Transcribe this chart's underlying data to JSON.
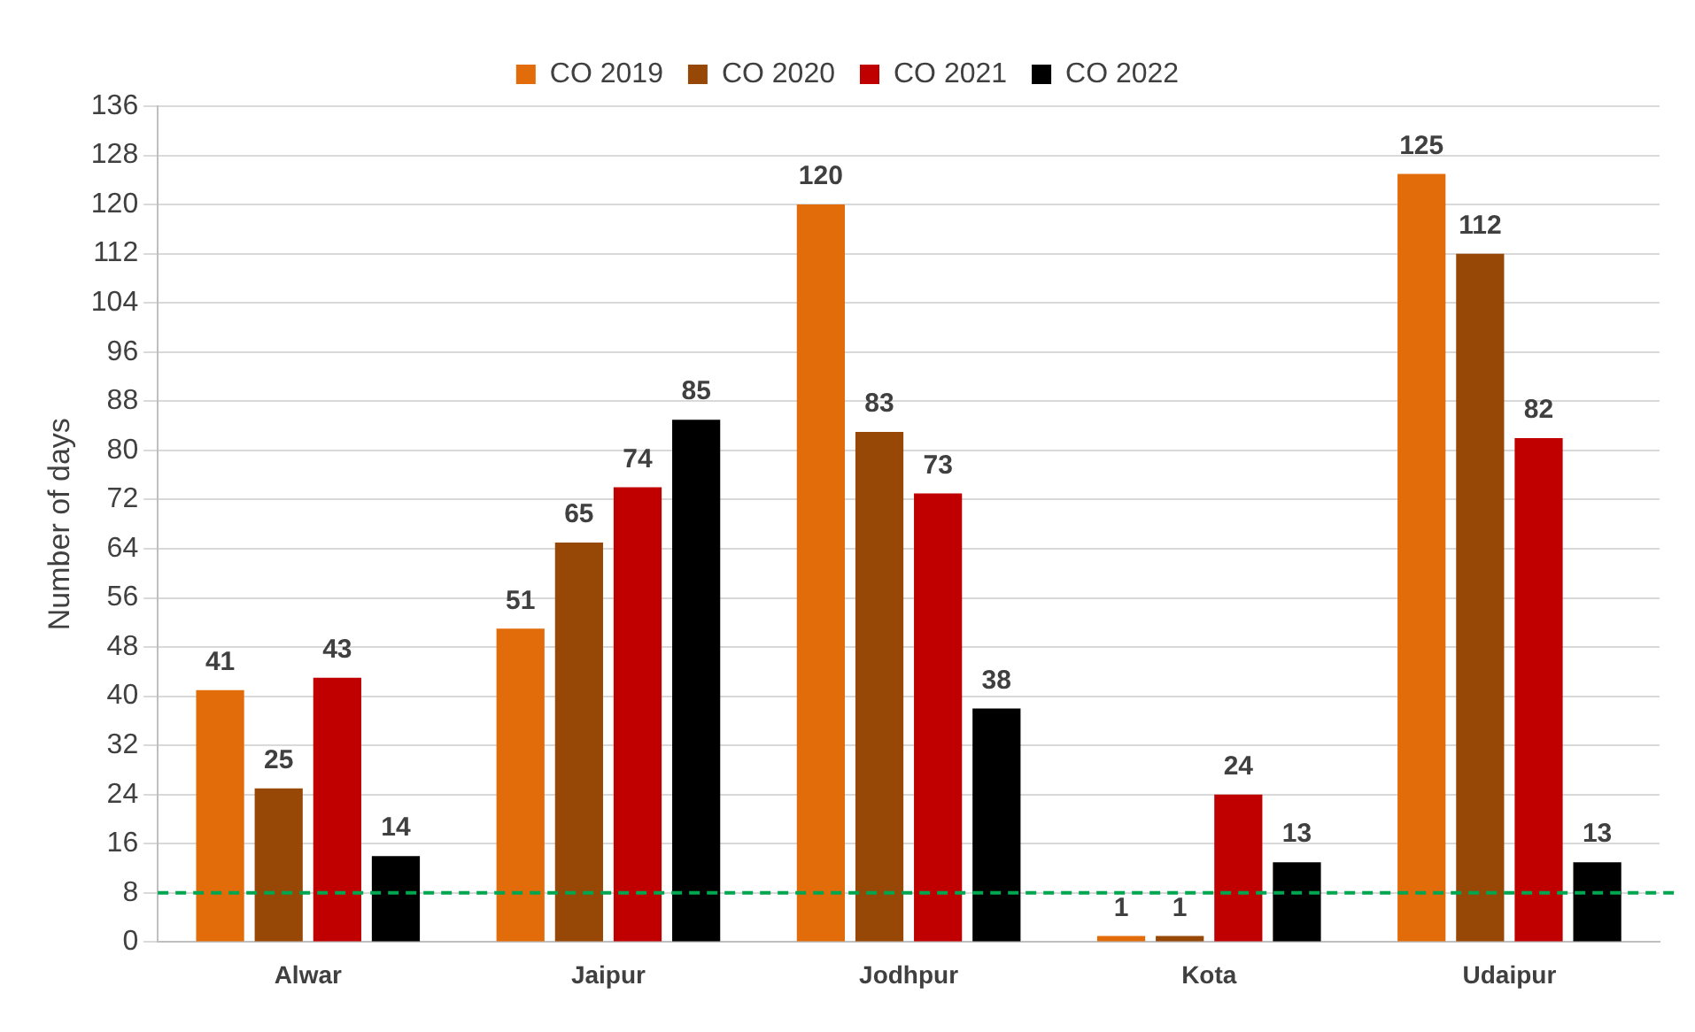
{
  "chart_data": {
    "type": "bar",
    "ylabel": "Number of days",
    "categories": [
      "Alwar",
      "Jaipur",
      "Jodhpur",
      "Kota",
      "Udaipur"
    ],
    "series": [
      {
        "name": "CO 2019",
        "color": "#e36c0a",
        "values": [
          41,
          51,
          120,
          1,
          125
        ]
      },
      {
        "name": "CO 2020",
        "color": "#974706",
        "values": [
          25,
          65,
          83,
          1,
          112
        ]
      },
      {
        "name": "CO 2021",
        "color": "#c00000",
        "values": [
          43,
          74,
          73,
          24,
          82
        ]
      },
      {
        "name": "CO 2022",
        "color": "#000000",
        "values": [
          14,
          85,
          38,
          13,
          13
        ]
      }
    ],
    "ylim": [
      0,
      136
    ],
    "yticks": [
      0,
      8,
      16,
      24,
      32,
      40,
      48,
      56,
      64,
      72,
      80,
      88,
      96,
      104,
      112,
      120,
      128,
      136
    ],
    "grid": "y",
    "legend": "top",
    "data_labels": true,
    "ref_lines": [
      {
        "axis": "y",
        "value": 8,
        "color": "#00a550",
        "line_style": "dashed"
      }
    ]
  }
}
